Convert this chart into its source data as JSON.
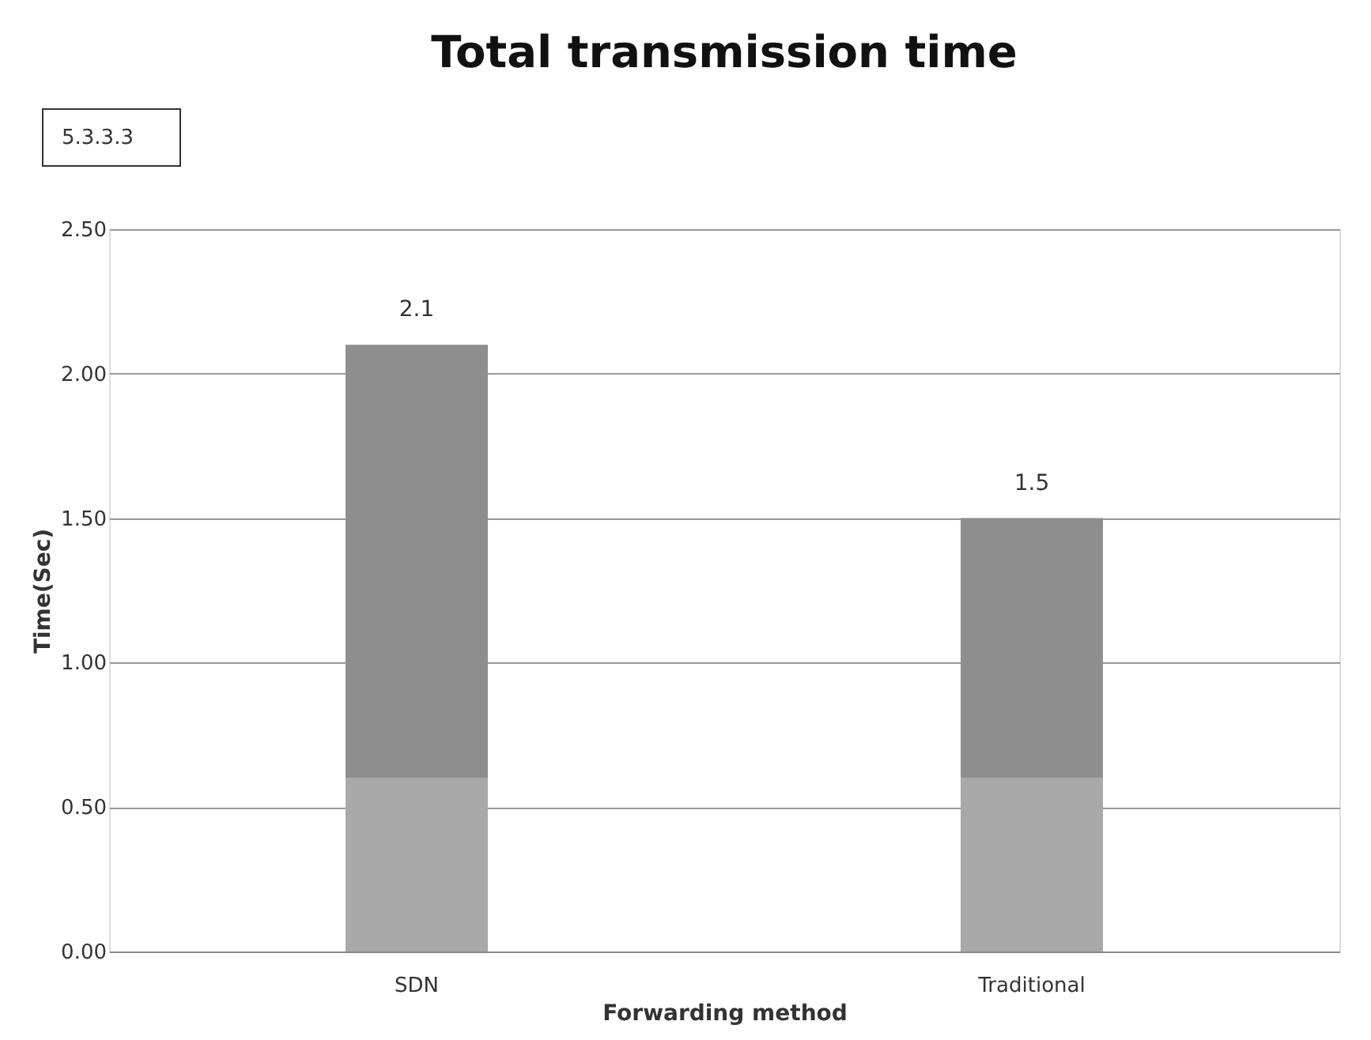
{
  "chart_data": {
    "type": "bar",
    "title": "Total transmission time",
    "xlabel": "Forwarding method",
    "ylabel": "Time(Sec)",
    "categories": [
      "SDN",
      "Traditional"
    ],
    "stacked": true,
    "series": [
      {
        "color": "#a9a9a9",
        "values": [
          0.6,
          0.6
        ]
      },
      {
        "color": "#8e8e8e",
        "values": [
          1.5,
          0.9
        ]
      }
    ],
    "totals": [
      "2.1",
      "1.5"
    ],
    "ylim": [
      0,
      2.5
    ],
    "yticks": [
      {
        "value": 0,
        "label": "0.00"
      },
      {
        "value": 0.5,
        "label": "0.50"
      },
      {
        "value": 1,
        "label": "1.00"
      },
      {
        "value": 1.5,
        "label": "1.50"
      },
      {
        "value": 2,
        "label": "2.00"
      },
      {
        "value": 2.5,
        "label": "2.50"
      }
    ],
    "grid": "y",
    "annotations": [
      "5.3.3.3"
    ]
  }
}
